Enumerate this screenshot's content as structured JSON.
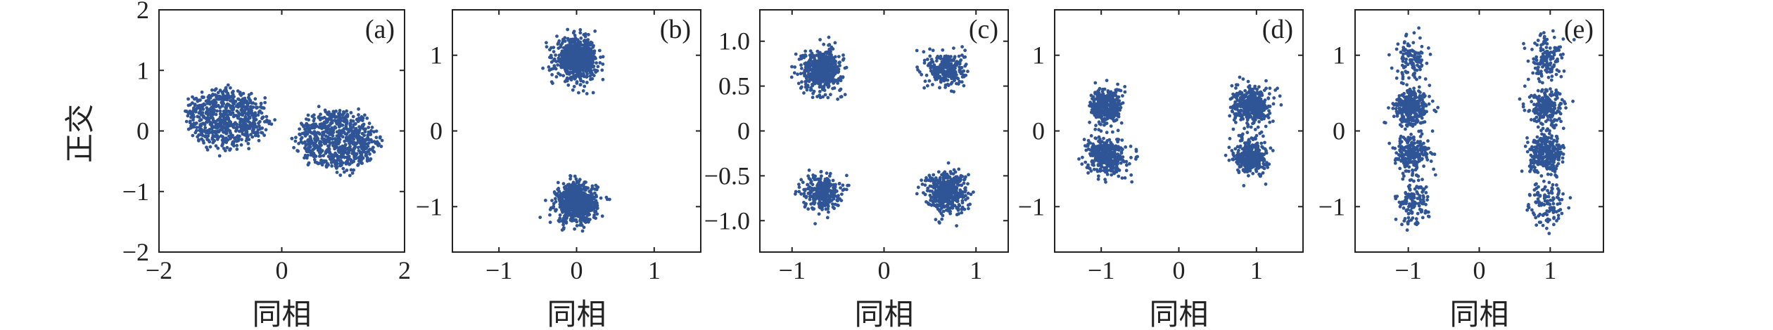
{
  "figure": {
    "y_axis_label": "正交",
    "point_color": "#2f5597"
  },
  "chart_data": [
    {
      "type": "scatter",
      "panel_label": "(a)",
      "xlabel": "同相",
      "ylabel": "正交",
      "xlim": [
        -2,
        2
      ],
      "ylim": [
        -2,
        2
      ],
      "xticks": [
        -2,
        0,
        2
      ],
      "xtick_labels": [
        "−2",
        "0",
        "2"
      ],
      "yticks": [
        -2,
        -1,
        0,
        1,
        2
      ],
      "ytick_labels": [
        "−2",
        "−1",
        "0",
        "1",
        "2"
      ],
      "grid": false,
      "clusters": [
        {
          "center": [
            -0.9,
            0.2
          ],
          "spread_x": 0.3,
          "spread_y": 0.25,
          "count": 700,
          "shape": "disc",
          "radius_x": 0.75,
          "radius_y": 0.55
        },
        {
          "center": [
            0.9,
            -0.15
          ],
          "spread_x": 0.3,
          "spread_y": 0.25,
          "count": 700,
          "shape": "disc",
          "radius_x": 0.75,
          "radius_y": 0.55
        }
      ]
    },
    {
      "type": "scatter",
      "panel_label": "(b)",
      "xlabel": "同相",
      "ylabel": "",
      "xlim": [
        -1.6,
        1.6
      ],
      "ylim": [
        -1.6,
        1.6
      ],
      "xticks": [
        -1,
        0,
        1
      ],
      "xtick_labels": [
        "−1",
        "0",
        "1"
      ],
      "yticks": [
        -1,
        0,
        1
      ],
      "ytick_labels": [
        "−1",
        "0",
        "1"
      ],
      "grid": false,
      "clusters": [
        {
          "center": [
            0.0,
            0.95
          ],
          "spread_x": 0.13,
          "spread_y": 0.13,
          "count": 700,
          "shape": "gauss"
        },
        {
          "center": [
            0.0,
            -0.95
          ],
          "spread_x": 0.13,
          "spread_y": 0.13,
          "count": 700,
          "shape": "gauss"
        }
      ]
    },
    {
      "type": "scatter",
      "panel_label": "(c)",
      "xlabel": "同相",
      "ylabel": "",
      "xlim": [
        -1.35,
        1.35
      ],
      "ylim": [
        -1.35,
        1.35
      ],
      "xticks": [
        -1,
        0,
        1
      ],
      "xtick_labels": [
        "−1",
        "0",
        "1"
      ],
      "yticks": [
        -1.0,
        -0.5,
        0,
        0.5,
        1.0
      ],
      "ytick_labels": [
        "−1.0",
        "−0.5",
        "0",
        "0.5",
        "1.0"
      ],
      "grid": false,
      "clusters": [
        {
          "center": [
            -0.68,
            0.68
          ],
          "spread_x": 0.11,
          "spread_y": 0.11,
          "count": 500,
          "shape": "gauss"
        },
        {
          "center": [
            0.68,
            0.68
          ],
          "spread_x": 0.1,
          "spread_y": 0.1,
          "count": 280,
          "shape": "gauss"
        },
        {
          "center": [
            -0.68,
            -0.68
          ],
          "spread_x": 0.1,
          "spread_y": 0.1,
          "count": 280,
          "shape": "gauss"
        },
        {
          "center": [
            0.68,
            -0.68
          ],
          "spread_x": 0.11,
          "spread_y": 0.11,
          "count": 500,
          "shape": "gauss"
        }
      ]
    },
    {
      "type": "scatter",
      "panel_label": "(d)",
      "xlabel": "同相",
      "ylabel": "",
      "xlim": [
        -1.6,
        1.6
      ],
      "ylim": [
        -1.6,
        1.6
      ],
      "xticks": [
        -1,
        0,
        1
      ],
      "xtick_labels": [
        "−1",
        "0",
        "1"
      ],
      "yticks": [
        -1,
        0,
        1
      ],
      "ytick_labels": [
        "−1",
        "0",
        "1"
      ],
      "grid": false,
      "clusters": [
        {
          "center": [
            -0.93,
            0.33
          ],
          "spread_x": 0.1,
          "spread_y": 0.12,
          "count": 350,
          "shape": "gauss"
        },
        {
          "center": [
            -0.93,
            -0.33
          ],
          "spread_x": 0.12,
          "spread_y": 0.12,
          "count": 400,
          "shape": "gauss"
        },
        {
          "center": [
            0.93,
            0.33
          ],
          "spread_x": 0.12,
          "spread_y": 0.12,
          "count": 400,
          "shape": "gauss"
        },
        {
          "center": [
            0.93,
            -0.33
          ],
          "spread_x": 0.1,
          "spread_y": 0.12,
          "count": 350,
          "shape": "gauss"
        }
      ]
    },
    {
      "type": "scatter",
      "panel_label": "(e)",
      "xlabel": "同相",
      "ylabel": "",
      "xlim": [
        -1.75,
        1.75
      ],
      "ylim": [
        -1.6,
        1.6
      ],
      "xticks": [
        -1,
        0,
        1
      ],
      "xtick_labels": [
        "−1",
        "0",
        "1"
      ],
      "yticks": [
        -1,
        0,
        1
      ],
      "ytick_labels": [
        "−1",
        "0",
        "1"
      ],
      "grid": false,
      "clusters": [
        {
          "center": [
            -0.95,
            0.95
          ],
          "spread_x": 0.12,
          "spread_y": 0.15,
          "count": 120,
          "shape": "gauss"
        },
        {
          "center": [
            -0.95,
            0.3
          ],
          "spread_x": 0.12,
          "spread_y": 0.12,
          "count": 320,
          "shape": "gauss"
        },
        {
          "center": [
            -0.95,
            -0.3
          ],
          "spread_x": 0.12,
          "spread_y": 0.12,
          "count": 220,
          "shape": "gauss"
        },
        {
          "center": [
            -0.95,
            -0.95
          ],
          "spread_x": 0.12,
          "spread_y": 0.15,
          "count": 130,
          "shape": "gauss"
        },
        {
          "center": [
            0.95,
            0.95
          ],
          "spread_x": 0.12,
          "spread_y": 0.15,
          "count": 130,
          "shape": "gauss"
        },
        {
          "center": [
            0.95,
            0.3
          ],
          "spread_x": 0.12,
          "spread_y": 0.12,
          "count": 220,
          "shape": "gauss"
        },
        {
          "center": [
            0.95,
            -0.3
          ],
          "spread_x": 0.12,
          "spread_y": 0.12,
          "count": 320,
          "shape": "gauss"
        },
        {
          "center": [
            0.95,
            -0.95
          ],
          "spread_x": 0.12,
          "spread_y": 0.15,
          "count": 120,
          "shape": "gauss"
        }
      ]
    }
  ]
}
